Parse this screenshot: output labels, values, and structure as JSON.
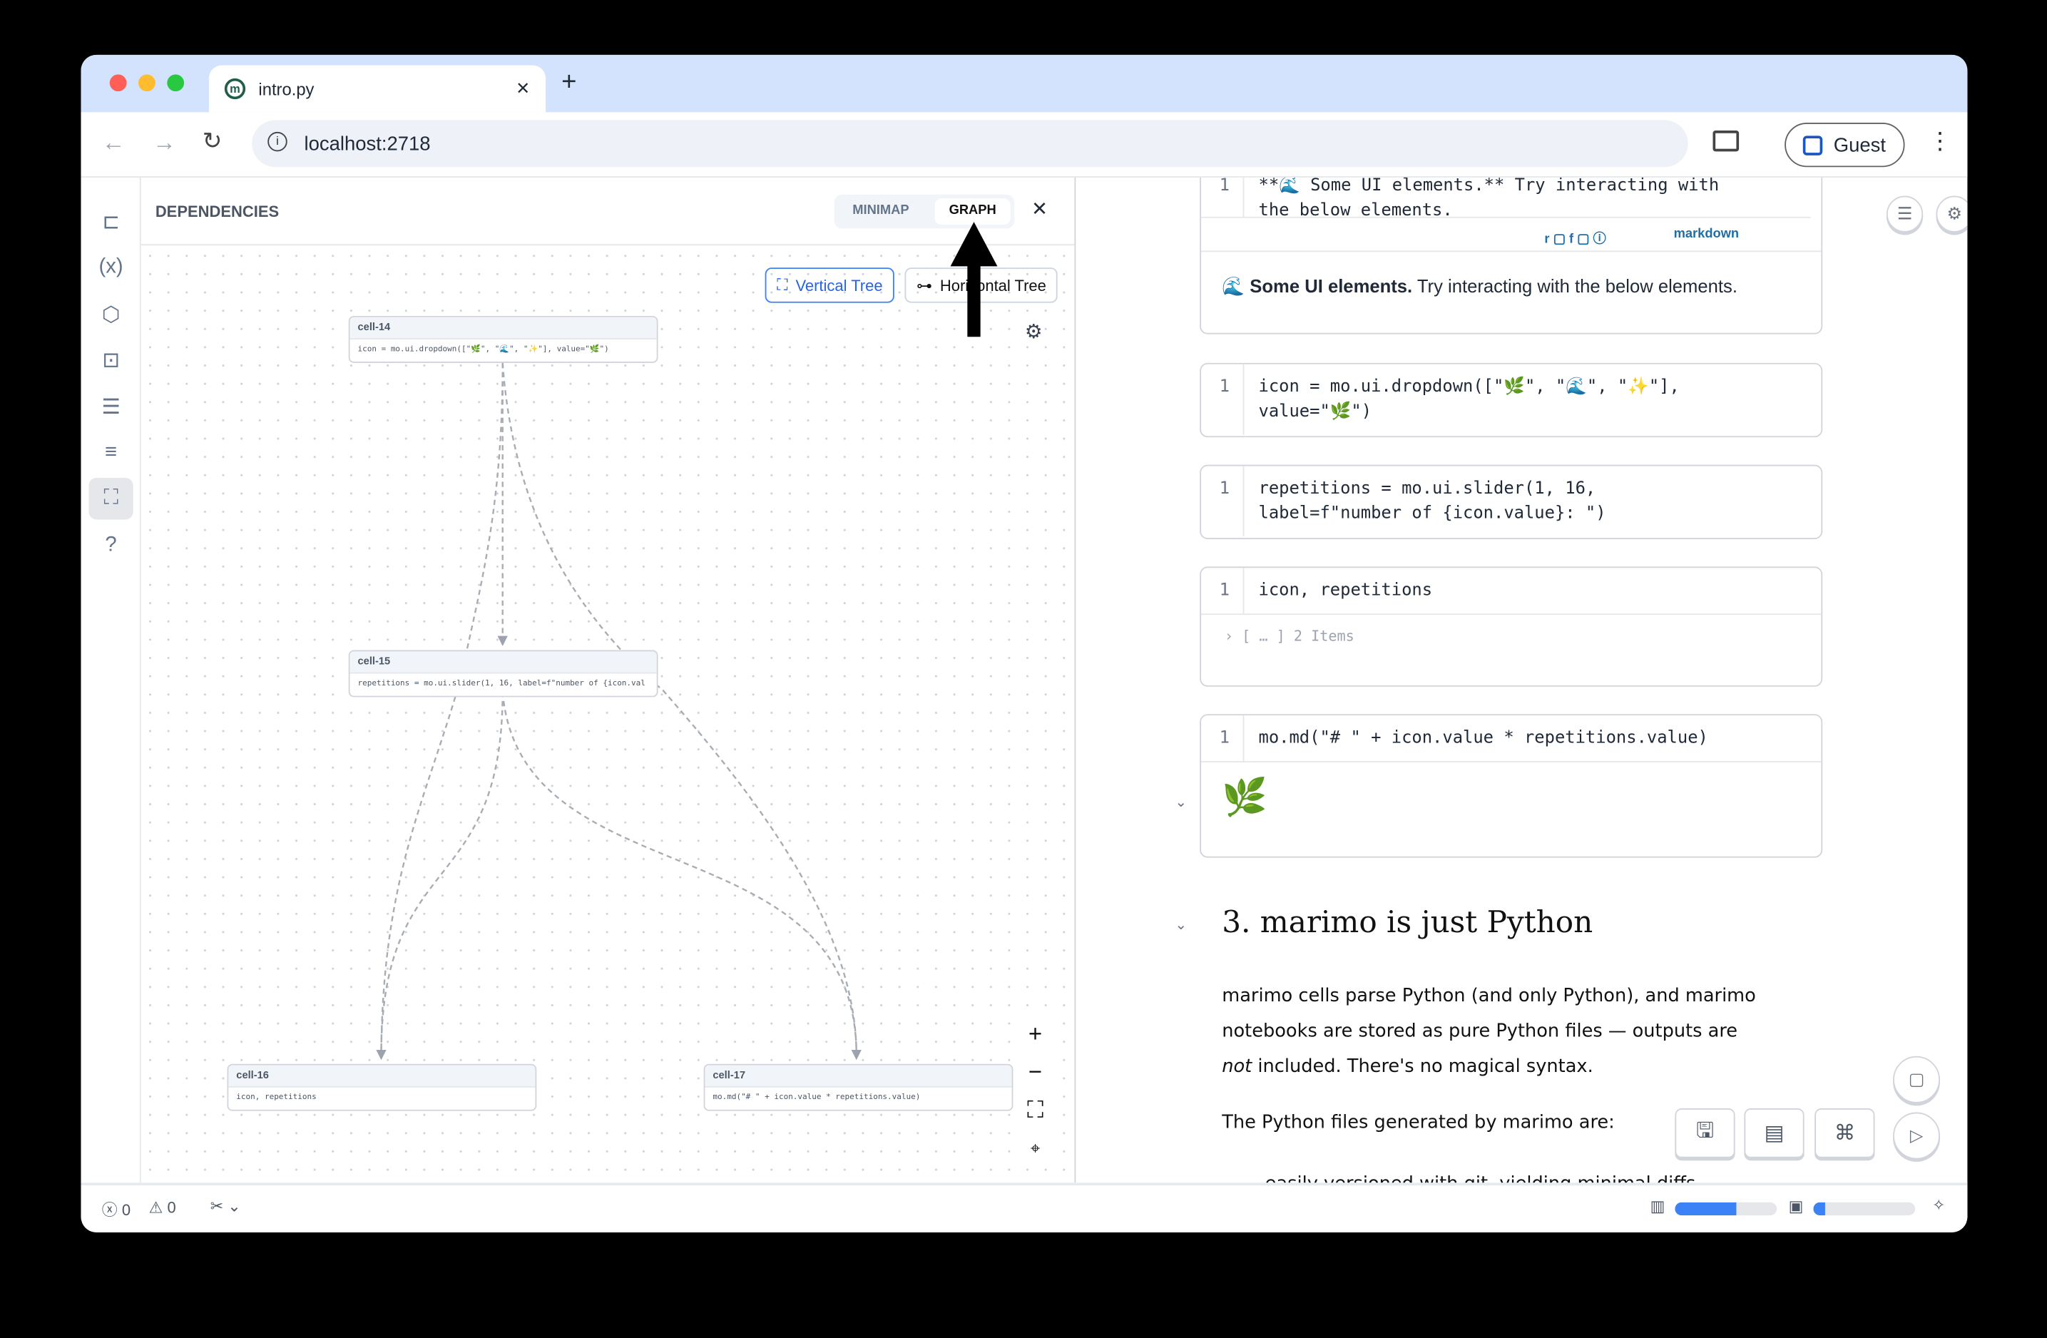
{
  "browser": {
    "tab_title": "intro.py",
    "url": "localhost:2718",
    "profile": "Guest",
    "new_tab": "+",
    "close_tab": "✕"
  },
  "sidebar": {
    "items": [
      "file-explorer-icon",
      "variables-icon",
      "packages-icon",
      "ai-assistant-icon",
      "logs-icon",
      "outline-icon",
      "dependencies-icon",
      "help-icon"
    ],
    "active": "dependencies-icon"
  },
  "dependencies": {
    "title": "DEPENDENCIES",
    "tabs": [
      {
        "label": "MINIMAP",
        "active": false
      },
      {
        "label": "GRAPH",
        "active": true
      }
    ],
    "layout_buttons": [
      {
        "label": "Vertical Tree",
        "active": true
      },
      {
        "label": "Horizontal Tree",
        "active": false
      }
    ],
    "nodes": [
      {
        "id": "cell-14",
        "code": "icon = mo.ui.dropdown([\"🌿\", \"🌊\", \"✨\"], value=\"🌿\")"
      },
      {
        "id": "cell-15",
        "code": "repetitions = mo.ui.slider(1, 16, label=f\"number of {icon.val"
      },
      {
        "id": "cell-16",
        "code": "icon, repetitions"
      },
      {
        "id": "cell-17",
        "code": "mo.md(\"# \" + icon.value * repetitions.value)"
      }
    ],
    "edges": [
      [
        "cell-14",
        "cell-15"
      ],
      [
        "cell-14",
        "cell-16"
      ],
      [
        "cell-14",
        "cell-17"
      ],
      [
        "cell-15",
        "cell-16"
      ],
      [
        "cell-15",
        "cell-17"
      ]
    ],
    "zoom_controls": [
      "+",
      "−",
      "fit-view-icon",
      "locate-icon"
    ]
  },
  "notebook": {
    "md_cell": {
      "source_line1": "**🌊 Some UI elements.** Try interacting with",
      "source_line2": "the below elements.",
      "flags": "r ▢ f ▢ ⓘ",
      "lang": "markdown",
      "output_bold": "Some UI elements.",
      "output_rest": " Try interacting with the below elements.",
      "emoji": "🌊"
    },
    "cells": [
      {
        "line": "1",
        "code1": "icon = mo.ui.dropdown([\"🌿\", \"🌊\", \"✨\"],",
        "code2": "value=\"🌿\")"
      },
      {
        "line": "1",
        "code1": "repetitions = mo.ui.slider(1, 16,",
        "code2": "label=f\"number of {icon.value}: \")"
      },
      {
        "line": "1",
        "code1": "icon, repetitions",
        "output": "› [  … ] 2 Items"
      },
      {
        "line": "1",
        "code1": "mo.md(\"# \" + icon.value * repetitions.value)",
        "output": "🌿"
      }
    ],
    "heading": "3. marimo is just Python",
    "para1": "marimo cells parse Python (and only Python), and marimo notebooks are stored as pure Python files — outputs are ",
    "para1_em": "not",
    "para1_end": " included. There's no magical syntax.",
    "para2": "The Python files generated by marimo are:",
    "para3": "easily versioned with git, yielding minimal diffs"
  },
  "status": {
    "errors": "0",
    "warnings": "0",
    "memory_fraction": 0.6,
    "cpu_fraction": 0.12
  },
  "annotation": {
    "arrow_target": "GRAPH"
  },
  "colors": {
    "accent": "#3b82f6",
    "tabbar": "#d3e3fd",
    "close_red": "#ef4444",
    "progress": "#3b82f6"
  }
}
